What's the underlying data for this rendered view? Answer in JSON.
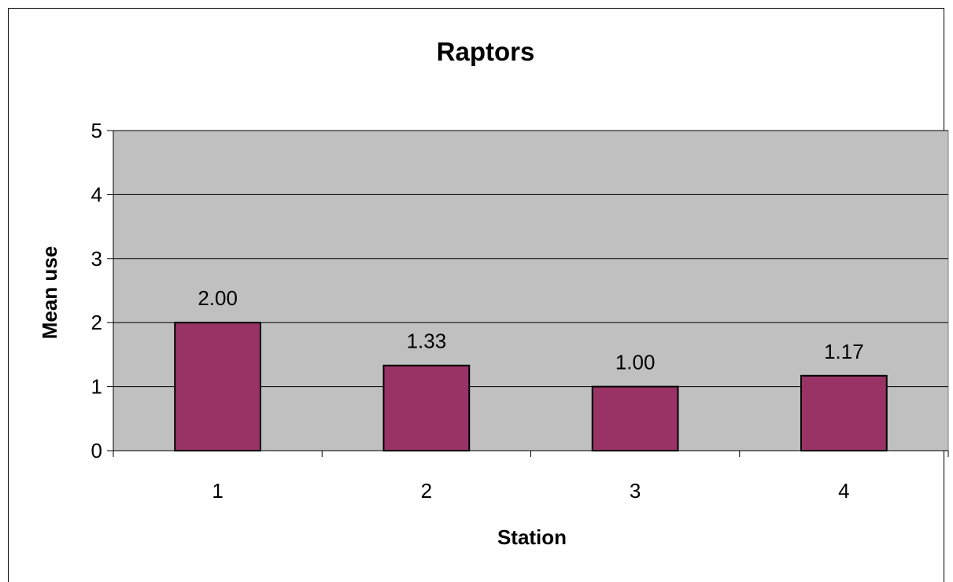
{
  "chart_data": {
    "type": "bar",
    "title": "Raptors",
    "xlabel": "Station",
    "ylabel": "Mean use",
    "categories": [
      "1",
      "2",
      "3",
      "4"
    ],
    "values": [
      2.0,
      1.33,
      1.0,
      1.17
    ],
    "data_labels": [
      "2.00",
      "1.33",
      "1.00",
      "1.17"
    ],
    "ylim": [
      0,
      5
    ],
    "yticks": [
      "0",
      "1",
      "2",
      "3",
      "4",
      "5"
    ],
    "grid": true,
    "legend": "none",
    "colors": {
      "bar": "#993366",
      "plot_background": "#c0c0c0",
      "gridline": "#000000"
    }
  }
}
